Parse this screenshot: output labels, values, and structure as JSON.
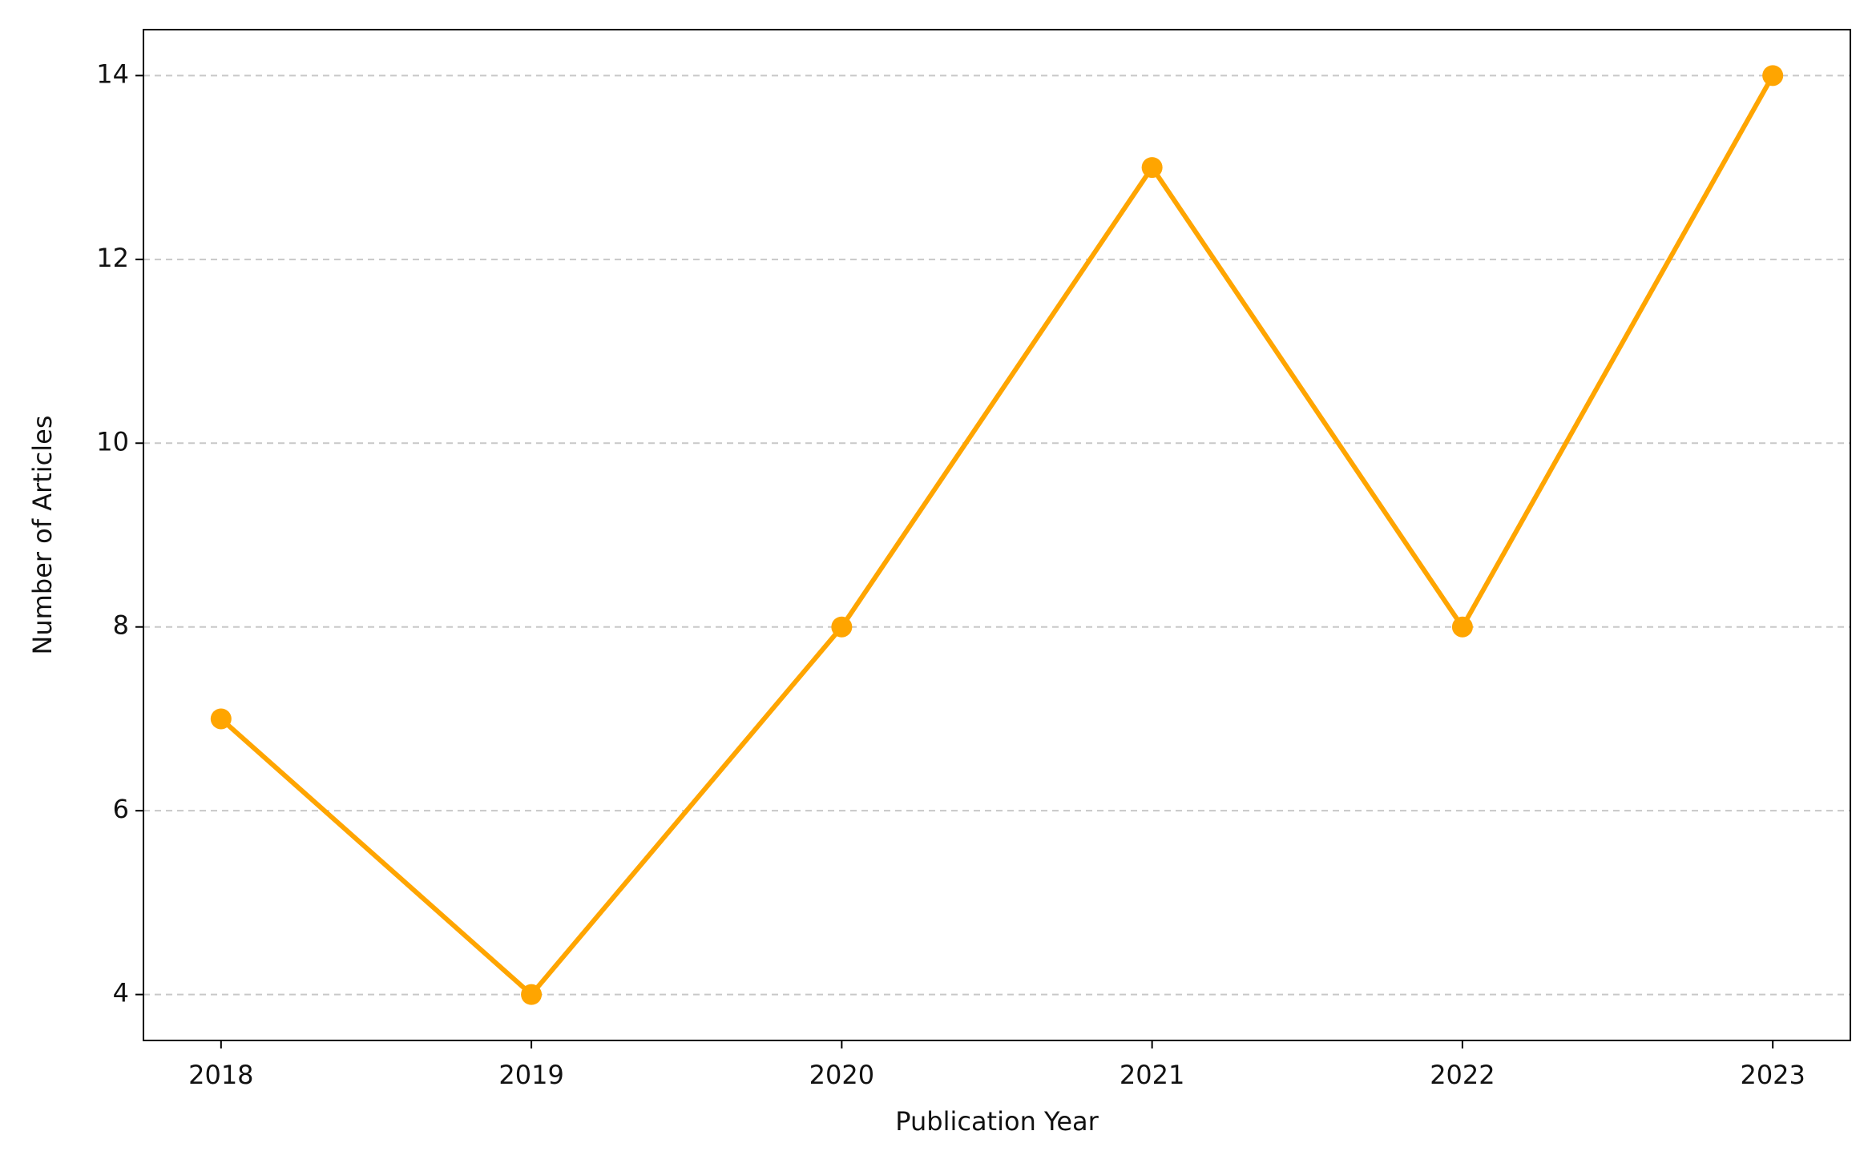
{
  "chart_data": {
    "type": "line",
    "x_label": "Publication Year",
    "y_label": "Number of Articles",
    "x": [
      2018,
      2019,
      2020,
      2021,
      2022,
      2023
    ],
    "values": [
      7,
      4,
      8,
      13,
      8,
      14
    ],
    "color": "#ffa500",
    "xlim": [
      2017.75,
      2023.25
    ],
    "xticks": [
      2018,
      2019,
      2020,
      2021,
      2022,
      2023
    ],
    "ylim": [
      3.5,
      14.5
    ],
    "yticks": [
      4,
      6,
      8,
      10,
      12,
      14
    ],
    "grid": "y"
  }
}
